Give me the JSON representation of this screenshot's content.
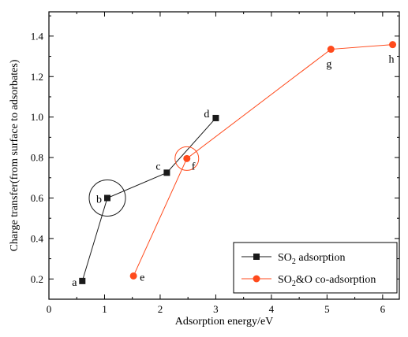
{
  "chart_data": {
    "type": "line",
    "title": "",
    "xlabel": "Adsorption energy/eV",
    "ylabel": "Charge transfer(from surface to adsorbates)",
    "xlim": [
      0,
      6.3
    ],
    "ylim": [
      0.1,
      1.52
    ],
    "xticks": [
      0,
      1,
      2,
      3,
      4,
      5,
      6
    ],
    "yticks": [
      0.2,
      0.4,
      0.6,
      0.8,
      1.0,
      1.2,
      1.4
    ],
    "ytick_labels": [
      "0.2",
      "0.4",
      "0.6",
      "0.8",
      "1.0",
      "1.2",
      "1.4"
    ],
    "grid": false,
    "legend_position": "bottom-right",
    "series": [
      {
        "name": "SO2 adsorption",
        "legend_main": "SO",
        "legend_sub": "2",
        "legend_rest": " adsorption",
        "color": "#1a1a1a",
        "marker": "square",
        "x": [
          0.6,
          1.05,
          2.12,
          3.0
        ],
        "y": [
          0.19,
          0.6,
          0.725,
          0.995
        ],
        "labels": [
          "a",
          "b",
          "c",
          "d"
        ]
      },
      {
        "name": "SO2&O co-adsorption",
        "legend_main": "SO",
        "legend_sub": "2",
        "legend_rest": "&O co-adsorption",
        "color": "#ff4a1c",
        "marker": "circle",
        "x": [
          1.52,
          2.48,
          5.07,
          6.18
        ],
        "y": [
          0.215,
          0.795,
          1.335,
          1.358
        ],
        "labels": [
          "e",
          "f",
          "g",
          "h"
        ]
      }
    ],
    "annotations": [
      {
        "type": "circle",
        "target": "b",
        "color": "#1a1a1a"
      },
      {
        "type": "circle",
        "target": "f",
        "color": "#ff4a1c"
      }
    ]
  }
}
